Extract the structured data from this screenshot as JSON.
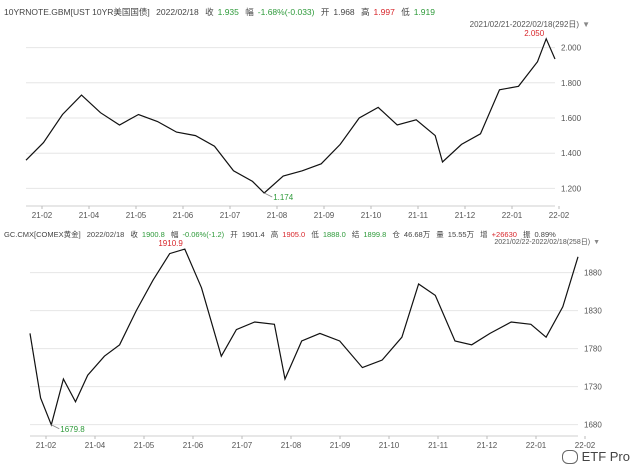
{
  "panel1": {
    "header": {
      "symbol": "10YRNOTE.GBM[UST 10YR美国国债]",
      "date": "2022/02/18",
      "close_label": "收",
      "close": "1.935",
      "change_label": "幅",
      "change": "-1.68%(-0.033)",
      "open_label": "开",
      "open": "1.968",
      "high_label": "高",
      "high": "1.997",
      "low_label": "低",
      "low": "1.919"
    },
    "range": "2021/02/21-2022/02/18(292日)",
    "range_icon": "dropdown-triangle-icon",
    "marker_high": "2.050",
    "marker_low": "1.174"
  },
  "panel2": {
    "header": {
      "symbol": "GC.CMX[COMEX黄金]",
      "date": "2022/02/18",
      "close_label": "收",
      "close": "1900.8",
      "change_label": "幅",
      "change": "-0.06%(-1.2)",
      "open_label": "开",
      "open": "1901.4",
      "high_label": "高",
      "high": "1905.0",
      "low_label": "低",
      "low": "1888.0",
      "settle_label": "结",
      "settle": "1899.8",
      "oi_label": "仓",
      "oi": "46.68万",
      "vol_label": "量",
      "vol": "15.55万",
      "inc_label": "增",
      "inc": "+26630",
      "amp_label": "振",
      "amp": "0.89%"
    },
    "range": "2021/02/22-2022/02/18(258日)",
    "range_icon": "dropdown-triangle-icon",
    "marker_high": "1910.9",
    "marker_low": "1679.8"
  },
  "watermark": "ETF Pro",
  "watermark_icon": "wechat-icon",
  "colors": {
    "up": "#d8262b",
    "down": "#2e9a3a",
    "line": "#111111",
    "grid": "#e6e6e6"
  },
  "chart_data": [
    {
      "type": "line",
      "title": "10YRNOTE.GBM[UST 10YR美国国债]",
      "xlabel": "",
      "ylabel": "",
      "x_ticks": [
        "21-02",
        "21-04",
        "21-05",
        "21-06",
        "21-07",
        "21-08",
        "21-09",
        "21-10",
        "21-11",
        "21-12",
        "22-01",
        "22-02"
      ],
      "y_ticks": [
        "1.200",
        "1.400",
        "1.600",
        "1.800",
        "2.000"
      ],
      "ylim": [
        1.1,
        2.1
      ],
      "grid": true,
      "series": [
        {
          "x": [
            "2021-02-21",
            "2021-03-05",
            "2021-03-18",
            "2021-03-31",
            "2021-04-13",
            "2021-04-26",
            "2021-05-09",
            "2021-05-22",
            "2021-06-04",
            "2021-06-17",
            "2021-06-30",
            "2021-07-13",
            "2021-07-26",
            "2021-08-03",
            "2021-08-16",
            "2021-08-29",
            "2021-09-11",
            "2021-09-24",
            "2021-10-07",
            "2021-10-20",
            "2021-11-02",
            "2021-11-15",
            "2021-11-28",
            "2021-12-03",
            "2021-12-16",
            "2021-12-29",
            "2022-01-11",
            "2022-01-24",
            "2022-02-06",
            "2022-02-12",
            "2022-02-18"
          ],
          "y": [
            1.36,
            1.46,
            1.62,
            1.73,
            1.63,
            1.56,
            1.62,
            1.58,
            1.52,
            1.5,
            1.44,
            1.3,
            1.24,
            1.174,
            1.27,
            1.3,
            1.34,
            1.45,
            1.6,
            1.66,
            1.56,
            1.59,
            1.5,
            1.35,
            1.45,
            1.51,
            1.76,
            1.78,
            1.92,
            2.05,
            1.935
          ]
        }
      ]
    },
    {
      "type": "line",
      "title": "GC.CMX[COMEX黄金]",
      "xlabel": "",
      "ylabel": "",
      "x_ticks": [
        "21-02",
        "21-04",
        "21-05",
        "21-06",
        "21-07",
        "21-08",
        "21-09",
        "21-10",
        "21-11",
        "21-12",
        "22-01",
        "22-02"
      ],
      "y_ticks": [
        "1680",
        "1730",
        "1780",
        "1830",
        "1880"
      ],
      "ylim": [
        1665,
        1915
      ],
      "grid": true,
      "series": [
        {
          "x": [
            "2021-02-22",
            "2021-03-01",
            "2021-03-08",
            "2021-03-16",
            "2021-03-24",
            "2021-04-01",
            "2021-04-12",
            "2021-04-22",
            "2021-05-03",
            "2021-05-14",
            "2021-05-25",
            "2021-06-04",
            "2021-06-15",
            "2021-06-28",
            "2021-07-08",
            "2021-07-20",
            "2021-08-02",
            "2021-08-09",
            "2021-08-20",
            "2021-09-01",
            "2021-09-14",
            "2021-09-29",
            "2021-10-12",
            "2021-10-25",
            "2021-11-05",
            "2021-11-16",
            "2021-11-29",
            "2021-12-10",
            "2021-12-22",
            "2022-01-05",
            "2022-01-18",
            "2022-01-28",
            "2022-02-08",
            "2022-02-18"
          ],
          "y": [
            1800,
            1715,
            1679.8,
            1740,
            1710,
            1745,
            1770,
            1785,
            1830,
            1870,
            1905,
            1910.9,
            1860,
            1770,
            1805,
            1815,
            1812,
            1740,
            1790,
            1800,
            1790,
            1755,
            1765,
            1795,
            1865,
            1850,
            1790,
            1785,
            1800,
            1815,
            1812,
            1795,
            1835,
            1900.8
          ]
        }
      ]
    }
  ]
}
